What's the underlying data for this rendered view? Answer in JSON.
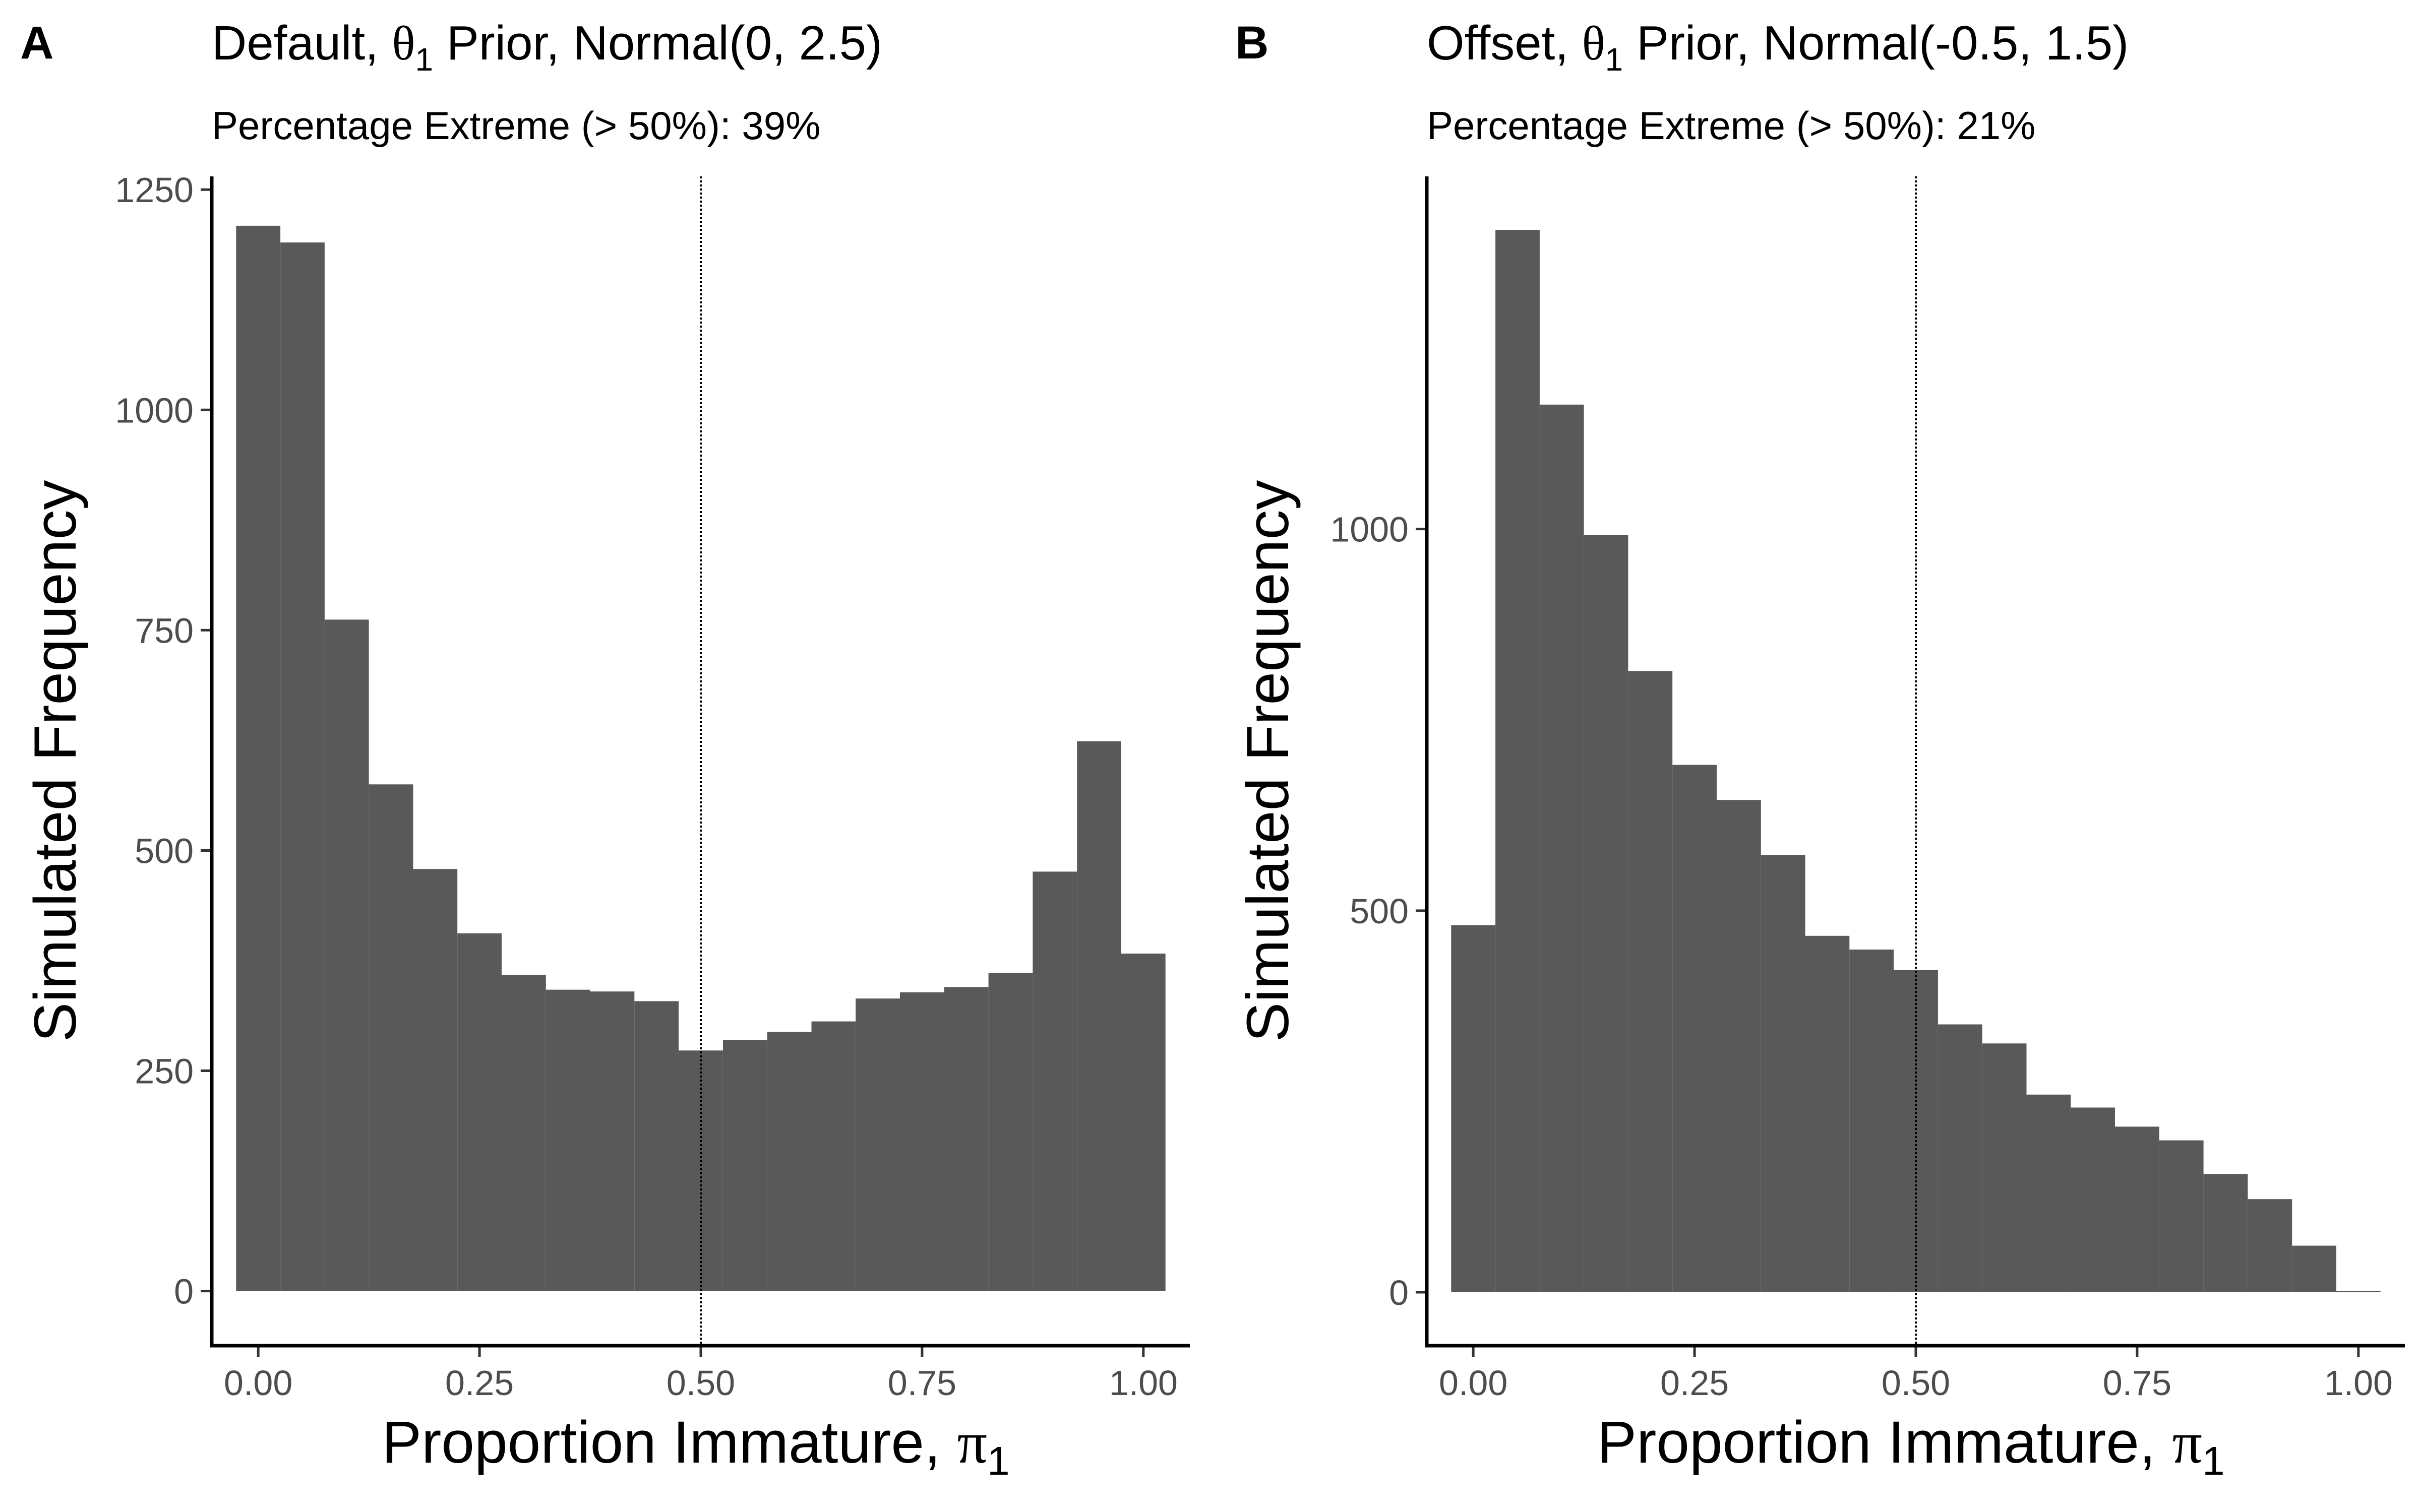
{
  "colors": {
    "bar_fill": "#595959",
    "background": "#ffffff",
    "axis": "#000000",
    "tick_label": "#4d4d4d"
  },
  "chart_data": [
    {
      "type": "bar",
      "panel_label": "A",
      "title": "Default, θ1 Prior, Normal(0, 2.5)",
      "title_parts": [
        "Default, ",
        "θ",
        "1",
        " Prior, Normal(0, 2.5)"
      ],
      "subtitle": "Percentage Extreme (> 50%): 39%",
      "xlabel": "Proportion Immature, π1",
      "xlabel_parts": [
        "Proportion Immature, ",
        "π",
        "1"
      ],
      "ylabel": "Simulated Frequency",
      "bin_width": 0.05,
      "bin_centers": [
        0.0,
        0.05,
        0.1,
        0.15,
        0.2,
        0.25,
        0.3,
        0.35,
        0.4,
        0.45,
        0.5,
        0.55,
        0.6,
        0.65,
        0.7,
        0.75,
        0.8,
        0.85,
        0.9,
        0.95,
        1.0
      ],
      "values": [
        1209,
        1190,
        762,
        575,
        479,
        406,
        359,
        342,
        340,
        329,
        273,
        285,
        294,
        306,
        332,
        339,
        345,
        361,
        476,
        624,
        383
      ],
      "xlim": [
        -0.0525,
        1.0525
      ],
      "ylim": [
        -62,
        1265
      ],
      "xticks": [
        0.0,
        0.25,
        0.5,
        0.75,
        1.0
      ],
      "xtick_labels": [
        "0.00",
        "0.25",
        "0.50",
        "0.75",
        "1.00"
      ],
      "yticks": [
        0,
        250,
        500,
        750,
        1000,
        1250
      ],
      "ytick_labels": [
        "0",
        "250",
        "500",
        "750",
        "1000",
        "1250"
      ],
      "vline": 0.5,
      "grid": false,
      "legend": "none"
    },
    {
      "type": "bar",
      "panel_label": "B",
      "title": "Offset, θ1 Prior, Normal(-0.5, 1.5)",
      "title_parts": [
        "Offset, ",
        "θ",
        "1",
        " Prior, Normal(-0.5, 1.5)"
      ],
      "subtitle": "Percentage Extreme (> 50%): 21%",
      "xlabel": "Proportion Immature, π1",
      "xlabel_parts": [
        "Proportion Immature, ",
        "π",
        "1"
      ],
      "ylabel": "Simulated Frequency",
      "bin_width": 0.05,
      "bin_centers": [
        0.0,
        0.05,
        0.1,
        0.15,
        0.2,
        0.25,
        0.3,
        0.35,
        0.4,
        0.45,
        0.5,
        0.55,
        0.6,
        0.65,
        0.7,
        0.75,
        0.8,
        0.85,
        0.9,
        0.95,
        1.0
      ],
      "values": [
        481,
        1392,
        1163,
        992,
        814,
        691,
        645,
        573,
        467,
        449,
        422,
        351,
        326,
        259,
        242,
        217,
        199,
        155,
        122,
        61,
        2
      ],
      "xlim": [
        -0.0525,
        1.0525
      ],
      "ylim": [
        -70,
        1462
      ],
      "xticks": [
        0.0,
        0.25,
        0.5,
        0.75,
        1.0
      ],
      "xtick_labels": [
        "0.00",
        "0.25",
        "0.50",
        "0.75",
        "1.00"
      ],
      "yticks": [
        0,
        500,
        1000
      ],
      "ytick_labels": [
        "0",
        "500",
        "1000"
      ],
      "vline": 0.5,
      "grid": false,
      "legend": "none"
    }
  ]
}
